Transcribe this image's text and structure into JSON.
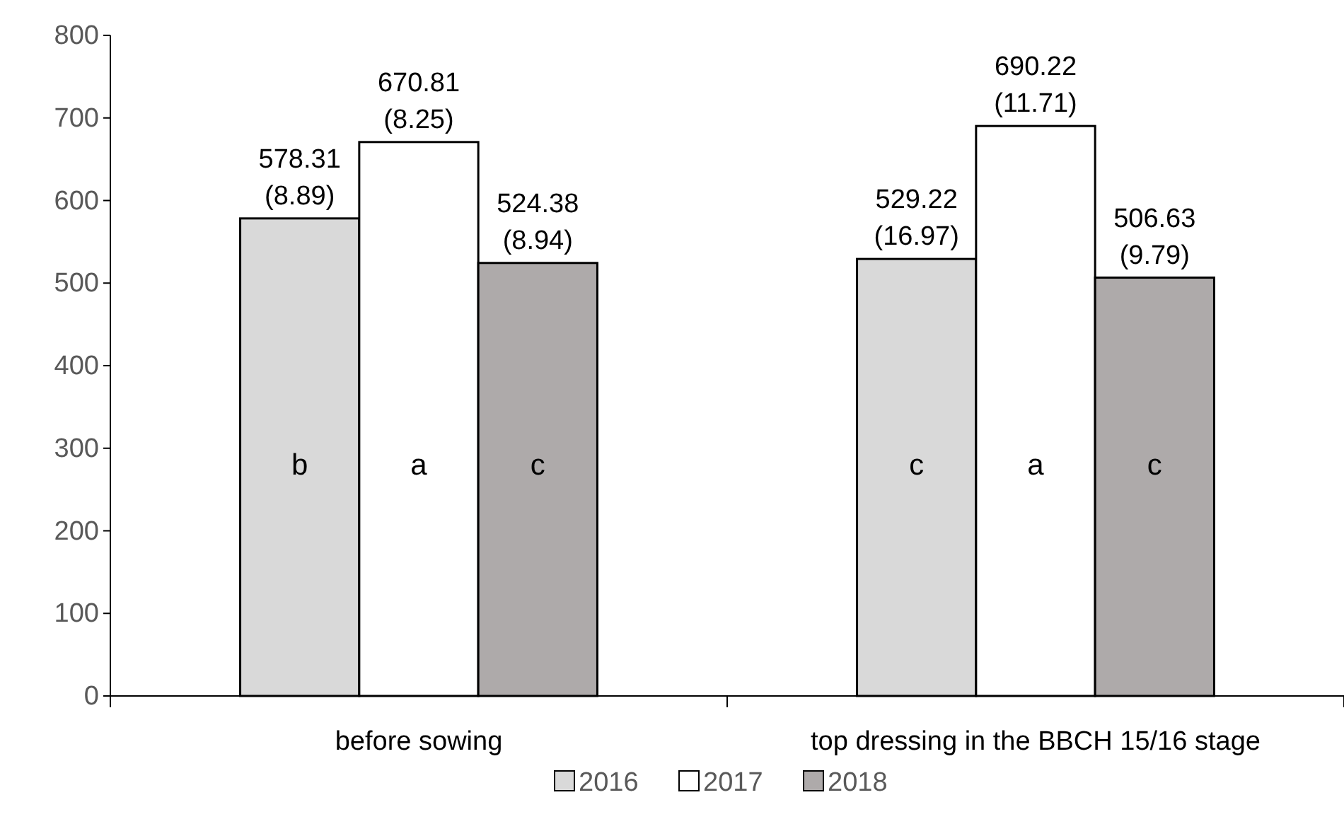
{
  "chart_data": {
    "type": "bar",
    "categories": [
      "before sowing",
      "top dressing in the BBCH 15/16 stage"
    ],
    "series": [
      {
        "name": "2016",
        "color": "#d9d9d9",
        "values": [
          578.31,
          529.22
        ],
        "value_labels": [
          "578.31\n(8.89)",
          "529.22\n(16.97)"
        ]
      },
      {
        "name": "2017",
        "color": "#ffffff",
        "values": [
          670.81,
          690.22
        ],
        "value_labels": [
          "670.81\n(8.25)",
          "690.22\n(11.71)"
        ]
      },
      {
        "name": "2018",
        "color": "#aeaaaa",
        "values": [
          524.38,
          506.63
        ],
        "value_labels": [
          "524.38\n(8.94)",
          "506.63\n(9.79)"
        ]
      }
    ],
    "annotations": [
      "b",
      "a",
      "c",
      "c",
      "a",
      "c"
    ],
    "ylim": [
      0,
      800
    ],
    "yticks": [
      0,
      100,
      200,
      300,
      400,
      500,
      600,
      700,
      800
    ],
    "grid": false,
    "legend": "bottom"
  }
}
